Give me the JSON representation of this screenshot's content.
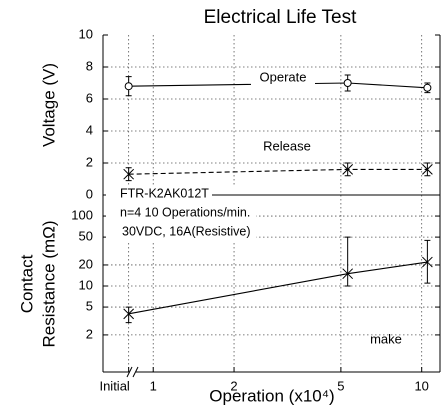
{
  "chart_data": [
    {
      "type": "line",
      "title": "Electrical Life Test",
      "ylabel": "Voltage (V)",
      "xscale": "log",
      "xlim": [
        0.65,
        11.7
      ],
      "xticks": [
        0.81,
        1,
        2,
        5,
        10
      ],
      "ylim": [
        0,
        10
      ],
      "yticks": [
        0,
        2,
        4,
        6,
        8,
        10
      ],
      "grid": true,
      "x": [
        0.81,
        5.3,
        10.5
      ],
      "series": [
        {
          "name": "Operate",
          "color": "#000000",
          "dash": false,
          "marker": "circle",
          "values": [
            6.8,
            7.0,
            6.7
          ],
          "errors": [
            0.6,
            0.5,
            0.3
          ]
        },
        {
          "name": "Release",
          "color": "#000000",
          "dash": true,
          "marker": "cross",
          "values": [
            1.3,
            1.6,
            1.6
          ],
          "errors": [
            0.4,
            0.4,
            0.4
          ]
        }
      ]
    },
    {
      "type": "line",
      "ylabel": [
        "Contact",
        "Resistance (mΩ)"
      ],
      "xlabel": "Operation (x10⁴)",
      "xscale": "log",
      "xlim": [
        0.65,
        11.7
      ],
      "xticks": [
        {
          "value": 0.81,
          "label": "Initial"
        },
        1,
        2,
        5,
        10
      ],
      "yscale": "log",
      "ylim": [
        0.59,
        200
      ],
      "yticks": [
        2,
        5,
        10,
        20,
        50,
        100
      ],
      "grid": true,
      "x": [
        0.81,
        5.3,
        10.5
      ],
      "series": [
        {
          "name": "make",
          "color": "#000000",
          "dash": false,
          "marker": "cross",
          "values": [
            4,
            15,
            22
          ],
          "lower": [
            3,
            10,
            11
          ],
          "upper": [
            5,
            50,
            45
          ]
        }
      ],
      "annotations": [
        "FTR-K2AK012T",
        "n=4  10 Operations/min.",
        "30VDC, 16A(Resistive)"
      ]
    }
  ]
}
